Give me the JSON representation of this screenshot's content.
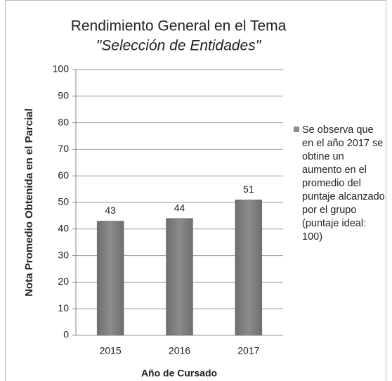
{
  "chart_data": {
    "type": "bar",
    "title": "Rendimiento General en el Tema",
    "subtitle": "\"Selección de Entidades\"",
    "x_label": "Año de Cursado",
    "y_label": "Nota Promedio Obtenida en el Parcial",
    "categories": [
      "2015",
      "2016",
      "2017"
    ],
    "series": [
      {
        "name": "Se observa que en el año 2017 se obtine un aumento en el promedio del puntaje alcanzado por el grupo (puntaje ideal: 100)",
        "color": "#8c8c8c",
        "values": [
          43,
          44,
          51
        ]
      }
    ],
    "ylim": [
      0,
      100
    ],
    "yticks": [
      0,
      10,
      20,
      30,
      40,
      50,
      60,
      70,
      80,
      90,
      100
    ],
    "grid": true,
    "legend": "right"
  }
}
